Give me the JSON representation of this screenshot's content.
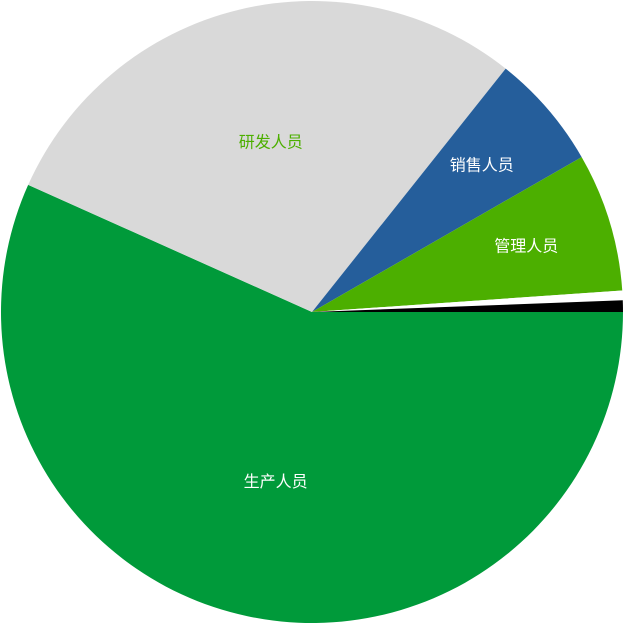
{
  "chart_data": {
    "type": "pie",
    "categories": [
      "生产人员",
      "研发人员",
      "销售人员",
      "管理人员",
      null,
      null
    ],
    "values": [
      56.7,
      29,
      6,
      7.2,
      0.5,
      0.6
    ],
    "colors": [
      "#009a3a",
      "#d9d9d9",
      "#255e9b",
      "#4caf00",
      "#ffffff",
      "#000000"
    ],
    "label_colors": [
      "#ffffff",
      "#4caf00",
      "#ffffff",
      "#ffffff",
      "#ffffff",
      "#ffffff"
    ]
  }
}
